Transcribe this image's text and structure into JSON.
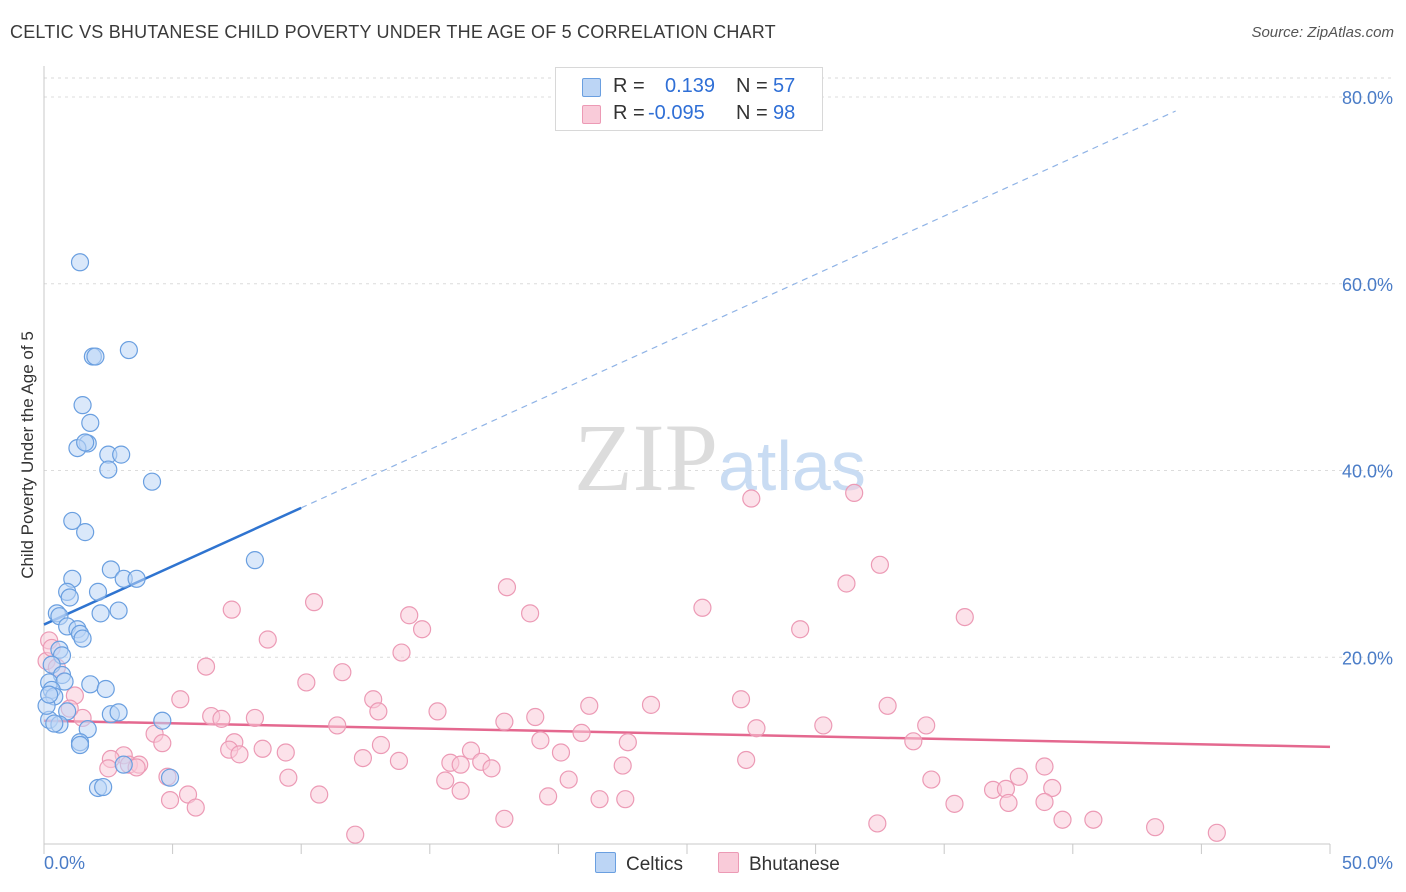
{
  "header": {
    "title": "CELTIC VS BHUTANESE CHILD POVERTY UNDER THE AGE OF 5 CORRELATION CHART",
    "source": "Source: ZipAtlas.com"
  },
  "watermark": {
    "part1": "ZIP",
    "part2": "atlas"
  },
  "stats": [
    {
      "r_label": "R =",
      "r_value": "0.139",
      "n_label": "N =",
      "n_value": "57",
      "color": "#a8c8f0"
    },
    {
      "r_label": "R =",
      "r_value": "-0.095",
      "n_label": "N =",
      "n_value": "98",
      "color": "#f7b8cc"
    }
  ],
  "legend": [
    {
      "label": "Celtics",
      "color": "#a8c8f0"
    },
    {
      "label": "Bhutanese",
      "color": "#f7b8cc"
    }
  ],
  "chart_data": {
    "type": "scatter",
    "title": "CELTIC VS BHUTANESE CHILD POVERTY UNDER THE AGE OF 5 CORRELATION CHART",
    "xlabel": "",
    "ylabel": "Child Poverty Under the Age of 5",
    "xlim": [
      0,
      50
    ],
    "ylim": [
      0,
      80
    ],
    "x_tick_labels": [
      "0.0%",
      "50.0%"
    ],
    "y_ticks": [
      20,
      40,
      60,
      80
    ],
    "y_tick_labels": [
      "20.0%",
      "40.0%",
      "60.0%",
      "80.0%"
    ],
    "grid": true,
    "series": [
      {
        "name": "Celtics",
        "color": "#6a9fe0",
        "fill": "#bcd5f5",
        "trend": {
          "x0": 0,
          "y0": 23.5,
          "x1": 10,
          "y1": 36,
          "dash_to_x": 44,
          "dash_to_y": 78.5,
          "color": "#2f74d0"
        },
        "points": [
          [
            1.4,
            62.3
          ],
          [
            1.9,
            52.2
          ],
          [
            2,
            52.2
          ],
          [
            3.3,
            52.9
          ],
          [
            1.5,
            47
          ],
          [
            1.8,
            45.1
          ],
          [
            1.7,
            42.9
          ],
          [
            1.3,
            42.4
          ],
          [
            1.6,
            43
          ],
          [
            2.5,
            41.7
          ],
          [
            3,
            41.7
          ],
          [
            2.5,
            40.1
          ],
          [
            4.2,
            38.8
          ],
          [
            1.1,
            34.6
          ],
          [
            1.6,
            33.4
          ],
          [
            8.2,
            30.4
          ],
          [
            2.6,
            29.4
          ],
          [
            1.1,
            28.4
          ],
          [
            3.1,
            28.4
          ],
          [
            3.6,
            28.4
          ],
          [
            0.9,
            27
          ],
          [
            1,
            26.4
          ],
          [
            2.1,
            27
          ],
          [
            0.5,
            24.7
          ],
          [
            0.6,
            24.4
          ],
          [
            2.2,
            24.7
          ],
          [
            2.9,
            25
          ],
          [
            0.9,
            23.3
          ],
          [
            1.3,
            23
          ],
          [
            1.4,
            22.5
          ],
          [
            1.5,
            22
          ],
          [
            0.6,
            20.8
          ],
          [
            0.7,
            20.2
          ],
          [
            0.3,
            19.2
          ],
          [
            0.7,
            18.1
          ],
          [
            0.2,
            17.3
          ],
          [
            0.8,
            17.4
          ],
          [
            1.8,
            17.1
          ],
          [
            2.4,
            16.6
          ],
          [
            0.3,
            16.5
          ],
          [
            0.4,
            15.8
          ],
          [
            0.9,
            14.2
          ],
          [
            2.6,
            13.9
          ],
          [
            2.9,
            14.1
          ],
          [
            0.2,
            13.3
          ],
          [
            0.6,
            12.8
          ],
          [
            1.7,
            12.3
          ],
          [
            0.4,
            12.9
          ],
          [
            4.6,
            13.2
          ],
          [
            0.1,
            14.8
          ],
          [
            0.2,
            16
          ],
          [
            1.4,
            10.9
          ],
          [
            1.4,
            10.6
          ],
          [
            3.1,
            8.5
          ],
          [
            4.9,
            7.1
          ],
          [
            2.1,
            6
          ],
          [
            2.3,
            6.1
          ]
        ]
      },
      {
        "name": "Bhutanese",
        "color": "#ec9ab5",
        "fill": "#f9cbd9",
        "trend": {
          "x0": 0,
          "y0": 13.2,
          "x1": 50,
          "y1": 10.4,
          "color": "#e4688f"
        },
        "points": [
          [
            27.5,
            37
          ],
          [
            31.5,
            37.6
          ],
          [
            32.5,
            29.9
          ],
          [
            31.2,
            27.9
          ],
          [
            18,
            27.5
          ],
          [
            25.6,
            25.3
          ],
          [
            10.5,
            25.9
          ],
          [
            7.3,
            25.1
          ],
          [
            14.2,
            24.5
          ],
          [
            18.9,
            24.7
          ],
          [
            35.8,
            24.3
          ],
          [
            14.7,
            23
          ],
          [
            29.4,
            23
          ],
          [
            8.7,
            21.9
          ],
          [
            13.9,
            20.5
          ],
          [
            6.3,
            19
          ],
          [
            11.6,
            18.4
          ],
          [
            10.2,
            17.3
          ],
          [
            1.2,
            15.9
          ],
          [
            5.3,
            15.5
          ],
          [
            12.8,
            15.5
          ],
          [
            13,
            14.2
          ],
          [
            15.3,
            14.2
          ],
          [
            21.2,
            14.8
          ],
          [
            23.6,
            14.9
          ],
          [
            27.1,
            15.5
          ],
          [
            32.8,
            14.8
          ],
          [
            6.5,
            13.7
          ],
          [
            6.9,
            13.4
          ],
          [
            8.2,
            13.5
          ],
          [
            17.9,
            13.1
          ],
          [
            19.1,
            13.6
          ],
          [
            11.4,
            12.7
          ],
          [
            20.9,
            11.9
          ],
          [
            27.7,
            12.4
          ],
          [
            30.3,
            12.7
          ],
          [
            34.3,
            12.7
          ],
          [
            7.4,
            10.9
          ],
          [
            4.3,
            11.8
          ],
          [
            4.6,
            10.8
          ],
          [
            7.2,
            10.1
          ],
          [
            8.5,
            10.2
          ],
          [
            9.4,
            9.8
          ],
          [
            7.6,
            9.6
          ],
          [
            13.1,
            10.6
          ],
          [
            16.6,
            10
          ],
          [
            19.3,
            11.1
          ],
          [
            20.1,
            9.8
          ],
          [
            22.7,
            10.9
          ],
          [
            33.8,
            11
          ],
          [
            3.1,
            9.5
          ],
          [
            2.6,
            9.1
          ],
          [
            3.3,
            8.5
          ],
          [
            2.5,
            8.1
          ],
          [
            3.7,
            8.5
          ],
          [
            3.6,
            8.2
          ],
          [
            12.4,
            9.2
          ],
          [
            13.8,
            8.9
          ],
          [
            15.8,
            8.7
          ],
          [
            16.2,
            8.5
          ],
          [
            17,
            8.8
          ],
          [
            17.4,
            8.1
          ],
          [
            22.5,
            8.4
          ],
          [
            27.3,
            9
          ],
          [
            9.5,
            7.1
          ],
          [
            4.8,
            7.2
          ],
          [
            15.6,
            6.8
          ],
          [
            20.4,
            6.9
          ],
          [
            34.5,
            6.9
          ],
          [
            37.9,
            7.2
          ],
          [
            38.9,
            8.3
          ],
          [
            36.9,
            5.8
          ],
          [
            37.4,
            5.9
          ],
          [
            39.2,
            6
          ],
          [
            5.6,
            5.3
          ],
          [
            10.7,
            5.3
          ],
          [
            16.2,
            5.7
          ],
          [
            19.6,
            5.1
          ],
          [
            21.6,
            4.8
          ],
          [
            22.6,
            4.8
          ],
          [
            4.9,
            4.7
          ],
          [
            5.9,
            3.9
          ],
          [
            35.4,
            4.3
          ],
          [
            37.5,
            4.4
          ],
          [
            38.9,
            4.5
          ],
          [
            17.9,
            2.7
          ],
          [
            32.4,
            2.2
          ],
          [
            39.6,
            2.6
          ],
          [
            40.8,
            2.6
          ],
          [
            43.2,
            1.8
          ],
          [
            45.6,
            1.2
          ],
          [
            12.1,
            1
          ],
          [
            0.1,
            19.6
          ],
          [
            0.5,
            18.9
          ],
          [
            1.5,
            13.5
          ],
          [
            1,
            14.5
          ],
          [
            0.2,
            21.8
          ],
          [
            0.3,
            21
          ]
        ]
      }
    ]
  }
}
